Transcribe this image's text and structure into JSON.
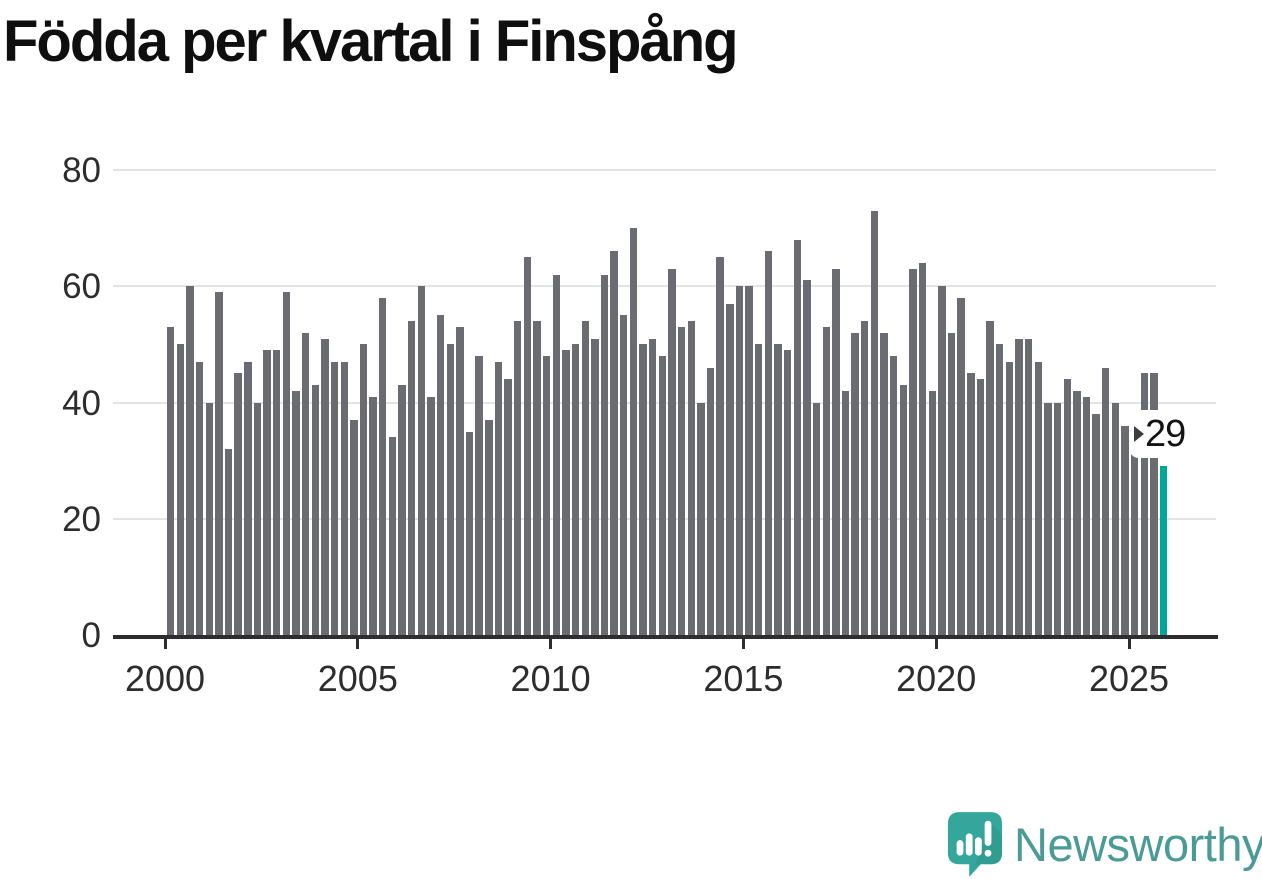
{
  "title": "Födda per kvartal i Finspång",
  "chart_data": {
    "type": "bar",
    "title": "Födda per kvartal i Finspång",
    "xlabel": "",
    "ylabel": "",
    "ylim": [
      0,
      80
    ],
    "yticks": [
      0,
      20,
      40,
      60,
      80
    ],
    "x_tick_years": [
      2000,
      2005,
      2010,
      2015,
      2020,
      2025
    ],
    "grid": true,
    "legend_position": "none",
    "start_period": "2000-Q1",
    "end_period": "2025-Q4",
    "categories": [
      "2000-Q1",
      "2000-Q2",
      "2000-Q3",
      "2000-Q4",
      "2001-Q1",
      "2001-Q2",
      "2001-Q3",
      "2001-Q4",
      "2002-Q1",
      "2002-Q2",
      "2002-Q3",
      "2002-Q4",
      "2003-Q1",
      "2003-Q2",
      "2003-Q3",
      "2003-Q4",
      "2004-Q1",
      "2004-Q2",
      "2004-Q3",
      "2004-Q4",
      "2005-Q1",
      "2005-Q2",
      "2005-Q3",
      "2005-Q4",
      "2006-Q1",
      "2006-Q2",
      "2006-Q3",
      "2006-Q4",
      "2007-Q1",
      "2007-Q2",
      "2007-Q3",
      "2007-Q4",
      "2008-Q1",
      "2008-Q2",
      "2008-Q3",
      "2008-Q4",
      "2009-Q1",
      "2009-Q2",
      "2009-Q3",
      "2009-Q4",
      "2010-Q1",
      "2010-Q2",
      "2010-Q3",
      "2010-Q4",
      "2011-Q1",
      "2011-Q2",
      "2011-Q3",
      "2011-Q4",
      "2012-Q1",
      "2012-Q2",
      "2012-Q3",
      "2012-Q4",
      "2013-Q1",
      "2013-Q2",
      "2013-Q3",
      "2013-Q4",
      "2014-Q1",
      "2014-Q2",
      "2014-Q3",
      "2014-Q4",
      "2015-Q1",
      "2015-Q2",
      "2015-Q3",
      "2015-Q4",
      "2016-Q1",
      "2016-Q2",
      "2016-Q3",
      "2016-Q4",
      "2017-Q1",
      "2017-Q2",
      "2017-Q3",
      "2017-Q4",
      "2018-Q1",
      "2018-Q2",
      "2018-Q3",
      "2018-Q4",
      "2019-Q1",
      "2019-Q2",
      "2019-Q3",
      "2019-Q4",
      "2020-Q1",
      "2020-Q2",
      "2020-Q3",
      "2020-Q4",
      "2021-Q1",
      "2021-Q2",
      "2021-Q3",
      "2021-Q4",
      "2022-Q1",
      "2022-Q2",
      "2022-Q3",
      "2022-Q4",
      "2023-Q1",
      "2023-Q2",
      "2023-Q3",
      "2023-Q4",
      "2024-Q1",
      "2024-Q2",
      "2024-Q3",
      "2024-Q4",
      "2025-Q1",
      "2025-Q2",
      "2025-Q3",
      "2025-Q4"
    ],
    "values": [
      53,
      50,
      60,
      47,
      40,
      59,
      32,
      45,
      47,
      40,
      49,
      49,
      59,
      42,
      52,
      43,
      51,
      47,
      47,
      37,
      50,
      41,
      58,
      34,
      43,
      54,
      60,
      41,
      55,
      50,
      53,
      35,
      48,
      37,
      47,
      44,
      54,
      65,
      54,
      48,
      62,
      49,
      50,
      54,
      51,
      62,
      66,
      55,
      70,
      50,
      51,
      48,
      63,
      53,
      54,
      40,
      46,
      65,
      57,
      60,
      60,
      50,
      66,
      50,
      49,
      68,
      61,
      40,
      53,
      63,
      42,
      52,
      54,
      73,
      52,
      48,
      43,
      63,
      64,
      42,
      60,
      52,
      58,
      45,
      44,
      54,
      50,
      47,
      51,
      51,
      47,
      40,
      40,
      44,
      42,
      41,
      38,
      46,
      40,
      36,
      34,
      45,
      45,
      29
    ],
    "bar_color": "#6b6b72",
    "highlight": {
      "index": 103,
      "value": 29,
      "color": "#00a69a"
    },
    "annotation": {
      "label": "29"
    }
  },
  "branding": {
    "logo_text": "Newsworthy",
    "logo_color": "#35a69c",
    "text_color": "#4a9b95"
  }
}
